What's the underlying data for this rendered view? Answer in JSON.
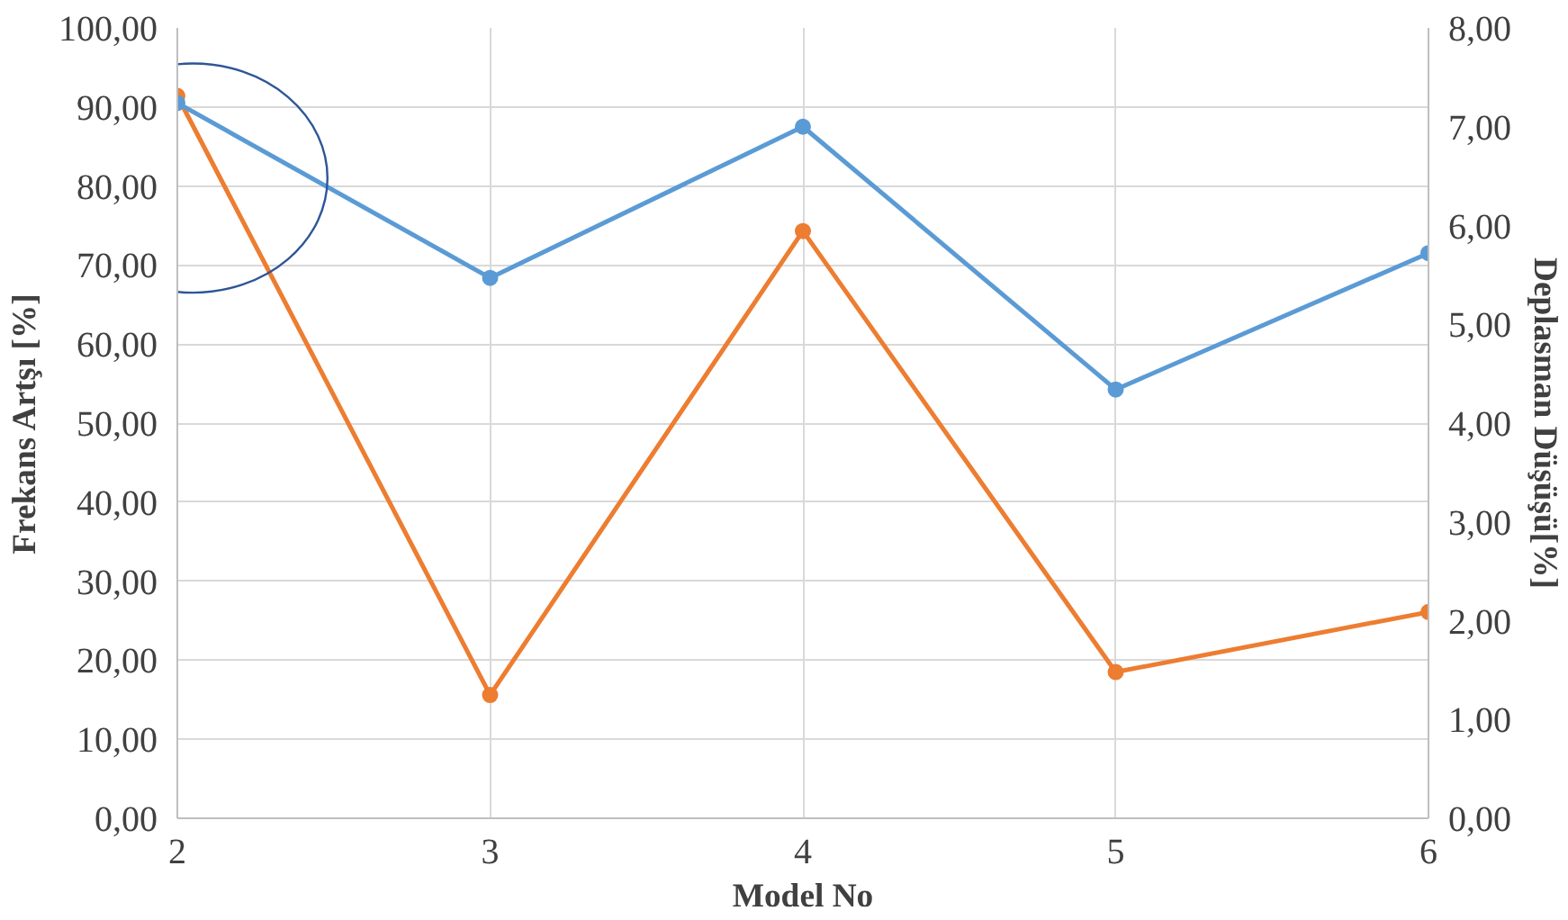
{
  "chart_data": {
    "type": "line",
    "xlabel": "Model No",
    "ylabel": "Frekans Artşı [%]",
    "y2label": "Deplasman Düşüşü[%]",
    "x": [
      2,
      3,
      4,
      5,
      6
    ],
    "series": [
      {
        "color": "#ed7d31",
        "values": [
          91.4,
          15.6,
          74.3,
          18.5,
          26.1
        ]
      },
      {
        "color": "#5b9bd5",
        "values": [
          7.24,
          5.47,
          7.0,
          4.34,
          5.72
        ],
        "axis": "y2"
      }
    ],
    "xlim": [
      2,
      6
    ],
    "xticks": [
      {
        "value": 2,
        "label": "2"
      },
      {
        "value": 3,
        "label": "3"
      },
      {
        "value": 4,
        "label": "4"
      },
      {
        "value": 5,
        "label": "5"
      },
      {
        "value": 6,
        "label": "6"
      }
    ],
    "ylim": [
      0,
      100
    ],
    "yticks": [
      {
        "value": 0,
        "label": "0,00"
      },
      {
        "value": 10,
        "label": "10,00"
      },
      {
        "value": 20,
        "label": "20,00"
      },
      {
        "value": 30,
        "label": "30,00"
      },
      {
        "value": 40,
        "label": "40,00"
      },
      {
        "value": 50,
        "label": "50,00"
      },
      {
        "value": 60,
        "label": "60,00"
      },
      {
        "value": 70,
        "label": "70,00"
      },
      {
        "value": 80,
        "label": "80,00"
      },
      {
        "value": 90,
        "label": "90,00"
      },
      {
        "value": 100,
        "label": "100,00"
      }
    ],
    "y2lim": [
      0,
      8
    ],
    "y2ticks": [
      {
        "value": 0,
        "label": "0,00"
      },
      {
        "value": 1,
        "label": "1,00"
      },
      {
        "value": 2,
        "label": "2,00"
      },
      {
        "value": 3,
        "label": "3,00"
      },
      {
        "value": 4,
        "label": "4,00"
      },
      {
        "value": 5,
        "label": "5,00"
      },
      {
        "value": 6,
        "label": "6,00"
      },
      {
        "value": 7,
        "label": "7,00"
      },
      {
        "value": 8,
        "label": "8,00"
      }
    ],
    "grid": true,
    "marker": "circle",
    "line_style": "solid"
  }
}
